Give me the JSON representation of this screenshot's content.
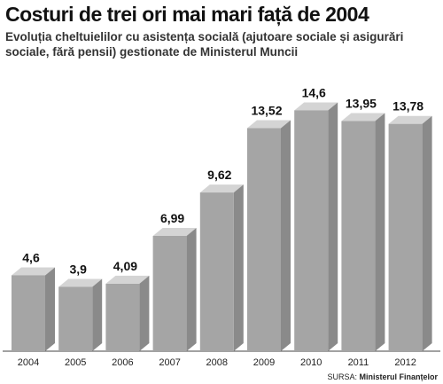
{
  "chart_data": {
    "type": "bar",
    "title": "Costuri de trei ori mai mari față de 2004",
    "subtitle": "Evoluția cheltuielilor cu asistența socială (ajutoare sociale și asigurări sociale, fără pensii) gestionate de Ministerul Muncii",
    "categories": [
      "2004",
      "2005",
      "2006",
      "2007",
      "2008",
      "2009",
      "2010",
      "2011",
      "2012"
    ],
    "values": [
      4.6,
      3.9,
      4.09,
      6.99,
      9.62,
      13.52,
      14.6,
      13.95,
      13.78
    ],
    "value_labels": [
      "4,6",
      "3,9",
      "4,09",
      "6,99",
      "9,62",
      "13,52",
      "14,6",
      "13,95",
      "13,78"
    ],
    "xlabel": "",
    "ylabel": "",
    "ylim": [
      0,
      16
    ],
    "grid": false,
    "legend": "none",
    "colors": {
      "bar_front": "#a5a5a5",
      "bar_top": "#d4d4d4",
      "bar_side": "#8a8a8a"
    }
  },
  "source": {
    "prefix": "SURSA:",
    "name": "Ministerul Finanțelor"
  }
}
